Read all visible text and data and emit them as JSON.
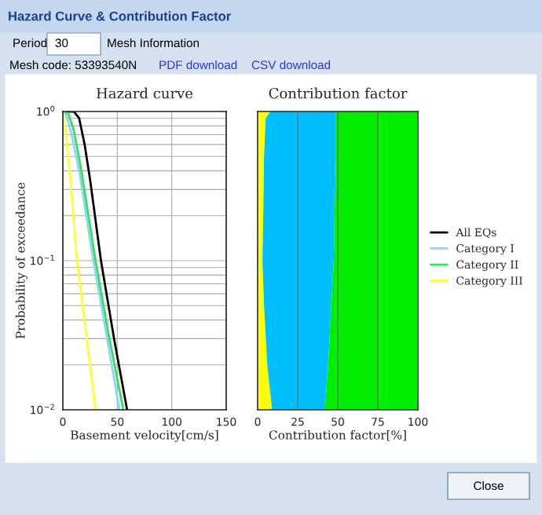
{
  "chart_data": [
    {
      "type": "other",
      "title": "Hazard Curve & Contribution Factor",
      "annotations": [
        "Period",
        "30",
        "Mesh Information",
        "Mesh code: 53393540N",
        "PDF download",
        "CSV download",
        "Close"
      ]
    },
    {
      "type": "line",
      "title": "Hazard curve",
      "xlabel": "Basement velocity[cm/s]",
      "ylabel": "Probability of exceedance",
      "log": "y",
      "xlim": [
        0,
        150
      ],
      "xticks": [
        0,
        50,
        100,
        150
      ],
      "ylim": [
        0.01,
        1
      ],
      "yticks": [
        {
          "value": 1,
          "label": "10$^{0}$"
        },
        {
          "value": 0.1,
          "label": "10$^{−1}$"
        },
        {
          "value": 0.01,
          "label": "10$^{−2}$"
        }
      ],
      "grid": true,
      "legend": "right",
      "marker": "none",
      "line_style": "solid",
      "series": [
        {
          "name": "All EQs",
          "color": "#000000",
          "x": [
            0,
            10,
            15,
            20,
            25,
            35,
            47,
            59
          ],
          "values": [
            1,
            1,
            0.9,
            0.6,
            0.35,
            0.1,
            0.03,
            0.01
          ]
        },
        {
          "name": "Category I",
          "color": "#8fd6f0",
          "x": [
            0,
            3,
            8,
            15,
            28,
            40,
            52
          ],
          "values": [
            1,
            0.95,
            0.7,
            0.4,
            0.1,
            0.032,
            0.01
          ]
        },
        {
          "name": "Category II",
          "color": "#33dd66",
          "x": [
            0,
            5,
            10,
            17,
            30,
            42,
            55.5
          ],
          "values": [
            1,
            0.97,
            0.75,
            0.4,
            0.1,
            0.032,
            0.01
          ]
        },
        {
          "name": "Category III",
          "color": "#ffff33",
          "x": [
            0,
            3,
            7,
            13,
            22,
            30
          ],
          "values": [
            1,
            0.7,
            0.35,
            0.1,
            0.03,
            0.01
          ]
        }
      ]
    },
    {
      "type": "area",
      "title": "Contribution factor",
      "xlabel": "Contribution factor[%]",
      "stacked": true,
      "orientation": "horizontal",
      "log": "y",
      "xlim": [
        0,
        100
      ],
      "xticks": [
        0,
        25,
        50,
        75,
        100
      ],
      "ylim": [
        0.01,
        1
      ],
      "yticks": [
        {
          "value": 1,
          "label": null
        },
        {
          "value": 0.1,
          "label": null
        },
        {
          "value": 0.01,
          "label": null
        }
      ],
      "tick_labels": "x",
      "grid": "x",
      "x": [
        1,
        0.9,
        0.5,
        0.2,
        0.1,
        0.05,
        0.02,
        0.01
      ],
      "series": [
        {
          "color": "#ffff00",
          "values": [
            8,
            5,
            4,
            3.5,
            3,
            4,
            6,
            9
          ]
        },
        {
          "color": "#00bfff",
          "values": [
            41,
            44,
            45,
            44.5,
            44.5,
            42,
            38,
            33
          ]
        },
        {
          "color": "#00ee00",
          "values": [
            51,
            51,
            51,
            52,
            52.5,
            54,
            56,
            58
          ]
        }
      ]
    }
  ]
}
